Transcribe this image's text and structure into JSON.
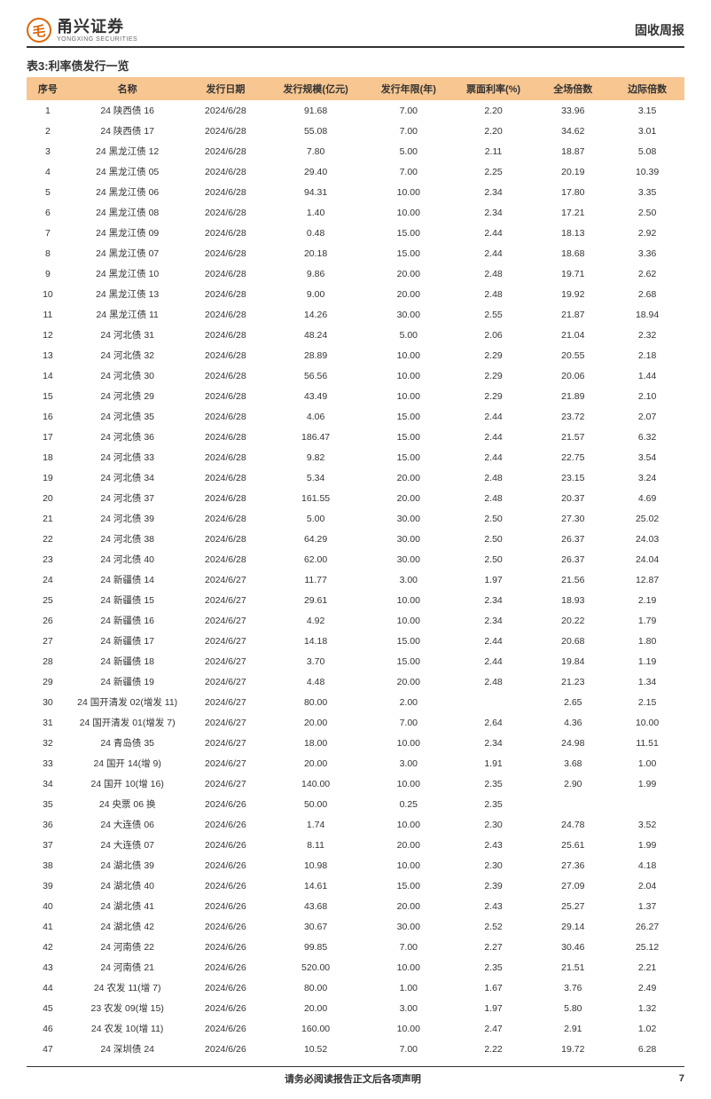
{
  "header": {
    "logo_cn": "甬兴证券",
    "logo_en": "YONGXING SECURITIES",
    "report_type": "固收周报"
  },
  "table": {
    "title": "表3:利率债发行一览",
    "columns": [
      "序号",
      "名称",
      "发行日期",
      "发行规模(亿元)",
      "发行年限(年)",
      "票面利率(%)",
      "全场倍数",
      "边际倍数"
    ],
    "column_widths": [
      "40px",
      "110px",
      "75px",
      "95px",
      "80px",
      "80px",
      "70px",
      "70px"
    ],
    "header_bg": "#f8c690",
    "rows": [
      [
        "1",
        "24 陕西债 16",
        "2024/6/28",
        "91.68",
        "7.00",
        "2.20",
        "33.96",
        "3.15"
      ],
      [
        "2",
        "24 陕西债 17",
        "2024/6/28",
        "55.08",
        "7.00",
        "2.20",
        "34.62",
        "3.01"
      ],
      [
        "3",
        "24 黑龙江债 12",
        "2024/6/28",
        "7.80",
        "5.00",
        "2.11",
        "18.87",
        "5.08"
      ],
      [
        "4",
        "24 黑龙江债 05",
        "2024/6/28",
        "29.40",
        "7.00",
        "2.25",
        "20.19",
        "10.39"
      ],
      [
        "5",
        "24 黑龙江债 06",
        "2024/6/28",
        "94.31",
        "10.00",
        "2.34",
        "17.80",
        "3.35"
      ],
      [
        "6",
        "24 黑龙江债 08",
        "2024/6/28",
        "1.40",
        "10.00",
        "2.34",
        "17.21",
        "2.50"
      ],
      [
        "7",
        "24 黑龙江债 09",
        "2024/6/28",
        "0.48",
        "15.00",
        "2.44",
        "18.13",
        "2.92"
      ],
      [
        "8",
        "24 黑龙江债 07",
        "2024/6/28",
        "20.18",
        "15.00",
        "2.44",
        "18.68",
        "3.36"
      ],
      [
        "9",
        "24 黑龙江债 10",
        "2024/6/28",
        "9.86",
        "20.00",
        "2.48",
        "19.71",
        "2.62"
      ],
      [
        "10",
        "24 黑龙江债 13",
        "2024/6/28",
        "9.00",
        "20.00",
        "2.48",
        "19.92",
        "2.68"
      ],
      [
        "11",
        "24 黑龙江债 11",
        "2024/6/28",
        "14.26",
        "30.00",
        "2.55",
        "21.87",
        "18.94"
      ],
      [
        "12",
        "24 河北债 31",
        "2024/6/28",
        "48.24",
        "5.00",
        "2.06",
        "21.04",
        "2.32"
      ],
      [
        "13",
        "24 河北债 32",
        "2024/6/28",
        "28.89",
        "10.00",
        "2.29",
        "20.55",
        "2.18"
      ],
      [
        "14",
        "24 河北债 30",
        "2024/6/28",
        "56.56",
        "10.00",
        "2.29",
        "20.06",
        "1.44"
      ],
      [
        "15",
        "24 河北债 29",
        "2024/6/28",
        "43.49",
        "10.00",
        "2.29",
        "21.89",
        "2.10"
      ],
      [
        "16",
        "24 河北债 35",
        "2024/6/28",
        "4.06",
        "15.00",
        "2.44",
        "23.72",
        "2.07"
      ],
      [
        "17",
        "24 河北债 36",
        "2024/6/28",
        "186.47",
        "15.00",
        "2.44",
        "21.57",
        "6.32"
      ],
      [
        "18",
        "24 河北债 33",
        "2024/6/28",
        "9.82",
        "15.00",
        "2.44",
        "22.75",
        "3.54"
      ],
      [
        "19",
        "24 河北债 34",
        "2024/6/28",
        "5.34",
        "20.00",
        "2.48",
        "23.15",
        "3.24"
      ],
      [
        "20",
        "24 河北债 37",
        "2024/6/28",
        "161.55",
        "20.00",
        "2.48",
        "20.37",
        "4.69"
      ],
      [
        "21",
        "24 河北债 39",
        "2024/6/28",
        "5.00",
        "30.00",
        "2.50",
        "27.30",
        "25.02"
      ],
      [
        "22",
        "24 河北债 38",
        "2024/6/28",
        "64.29",
        "30.00",
        "2.50",
        "26.37",
        "24.03"
      ],
      [
        "23",
        "24 河北债 40",
        "2024/6/28",
        "62.00",
        "30.00",
        "2.50",
        "26.37",
        "24.04"
      ],
      [
        "24",
        "24 新疆债 14",
        "2024/6/27",
        "11.77",
        "3.00",
        "1.97",
        "21.56",
        "12.87"
      ],
      [
        "25",
        "24 新疆债 15",
        "2024/6/27",
        "29.61",
        "10.00",
        "2.34",
        "18.93",
        "2.19"
      ],
      [
        "26",
        "24 新疆债 16",
        "2024/6/27",
        "4.92",
        "10.00",
        "2.34",
        "20.22",
        "1.79"
      ],
      [
        "27",
        "24 新疆债 17",
        "2024/6/27",
        "14.18",
        "15.00",
        "2.44",
        "20.68",
        "1.80"
      ],
      [
        "28",
        "24 新疆债 18",
        "2024/6/27",
        "3.70",
        "15.00",
        "2.44",
        "19.84",
        "1.19"
      ],
      [
        "29",
        "24 新疆债 19",
        "2024/6/27",
        "4.48",
        "20.00",
        "2.48",
        "21.23",
        "1.34"
      ],
      [
        "30",
        "24 国开清发 02(增发 11)",
        "2024/6/27",
        "80.00",
        "2.00",
        "",
        "2.65",
        "2.15"
      ],
      [
        "31",
        "24 国开清发 01(增发 7)",
        "2024/6/27",
        "20.00",
        "7.00",
        "2.64",
        "4.36",
        "10.00"
      ],
      [
        "32",
        "24 青岛债 35",
        "2024/6/27",
        "18.00",
        "10.00",
        "2.34",
        "24.98",
        "11.51"
      ],
      [
        "33",
        "24 国开 14(增 9)",
        "2024/6/27",
        "20.00",
        "3.00",
        "1.91",
        "3.68",
        "1.00"
      ],
      [
        "34",
        "24 国开 10(增 16)",
        "2024/6/27",
        "140.00",
        "10.00",
        "2.35",
        "2.90",
        "1.99"
      ],
      [
        "35",
        "24 央票 06 换",
        "2024/6/26",
        "50.00",
        "0.25",
        "2.35",
        "",
        ""
      ],
      [
        "36",
        "24 大连债 06",
        "2024/6/26",
        "1.74",
        "10.00",
        "2.30",
        "24.78",
        "3.52"
      ],
      [
        "37",
        "24 大连债 07",
        "2024/6/26",
        "8.11",
        "20.00",
        "2.43",
        "25.61",
        "1.99"
      ],
      [
        "38",
        "24 湖北债 39",
        "2024/6/26",
        "10.98",
        "10.00",
        "2.30",
        "27.36",
        "4.18"
      ],
      [
        "39",
        "24 湖北债 40",
        "2024/6/26",
        "14.61",
        "15.00",
        "2.39",
        "27.09",
        "2.04"
      ],
      [
        "40",
        "24 湖北债 41",
        "2024/6/26",
        "43.68",
        "20.00",
        "2.43",
        "25.27",
        "1.37"
      ],
      [
        "41",
        "24 湖北债 42",
        "2024/6/26",
        "30.67",
        "30.00",
        "2.52",
        "29.14",
        "26.27"
      ],
      [
        "42",
        "24 河南债 22",
        "2024/6/26",
        "99.85",
        "7.00",
        "2.27",
        "30.46",
        "25.12"
      ],
      [
        "43",
        "24 河南债 21",
        "2024/6/26",
        "520.00",
        "10.00",
        "2.35",
        "21.51",
        "2.21"
      ],
      [
        "44",
        "24 农发 11(增 7)",
        "2024/6/26",
        "80.00",
        "1.00",
        "1.67",
        "3.76",
        "2.49"
      ],
      [
        "45",
        "23 农发 09(增 15)",
        "2024/6/26",
        "20.00",
        "3.00",
        "1.97",
        "5.80",
        "1.32"
      ],
      [
        "46",
        "24 农发 10(增 11)",
        "2024/6/26",
        "160.00",
        "10.00",
        "2.47",
        "2.91",
        "1.02"
      ],
      [
        "47",
        "24 深圳债 24",
        "2024/6/26",
        "10.52",
        "7.00",
        "2.22",
        "19.72",
        "6.28"
      ]
    ]
  },
  "footer": {
    "disclaimer": "请务必阅读报告正文后各项声明",
    "page": "7"
  }
}
